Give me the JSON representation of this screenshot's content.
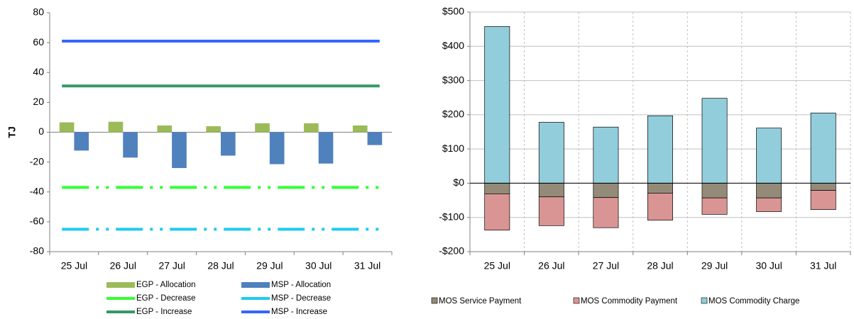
{
  "chart_data": [
    {
      "type": "bar",
      "y_label": "TJ",
      "categories": [
        "25 Jul",
        "26 Jul",
        "27 Jul",
        "28 Jul",
        "29 Jul",
        "30 Jul",
        "31 Jul"
      ],
      "ylim": [
        -80,
        80
      ],
      "yticks": [
        -80,
        -60,
        -40,
        -20,
        0,
        20,
        40,
        60,
        80
      ],
      "grid": false,
      "series": [
        {
          "name": "EGP - Allocation",
          "type": "bar",
          "color": "#9bbb59",
          "values": [
            6.6,
            7,
            4.5,
            4,
            6,
            6,
            4.5
          ]
        },
        {
          "name": "MSP - Allocation",
          "type": "bar",
          "color": "#4f81bd",
          "values": [
            -12.3,
            -17,
            -24,
            -15.7,
            -21.4,
            -21,
            -8.6
          ]
        },
        {
          "name": "EGP - Decrease",
          "type": "line",
          "dash": "dashdot",
          "color": "#33ff33",
          "values": [
            -37,
            -37,
            -37,
            -37,
            -37,
            -37,
            -37
          ]
        },
        {
          "name": "MSP - Decrease",
          "type": "line",
          "dash": "dashdot",
          "color": "#1ecbf0",
          "values": [
            -65,
            -65,
            -65,
            -65,
            -65,
            -65,
            -65
          ]
        },
        {
          "name": "EGP - Increase",
          "type": "line",
          "color": "#339966",
          "values": [
            31,
            31,
            31,
            31,
            31,
            31,
            31
          ]
        },
        {
          "name": "MSP - Increase",
          "type": "line",
          "color": "#3366ff",
          "values": [
            61,
            61,
            61,
            61,
            61,
            61,
            61
          ]
        }
      ]
    },
    {
      "type": "bar",
      "stacked": true,
      "categories": [
        "25 Jul",
        "26 Jul",
        "27 Jul",
        "28 Jul",
        "29 Jul",
        "30 Jul",
        "31 Jul"
      ],
      "ylim": [
        -200,
        500
      ],
      "yticks": [
        {
          "value": -200,
          "label": "-$200"
        },
        {
          "value": -100,
          "label": "-$100"
        },
        {
          "value": 0,
          "label": "$0"
        },
        {
          "value": 100,
          "label": "$100"
        },
        {
          "value": 200,
          "label": "$200"
        },
        {
          "value": 300,
          "label": "$300"
        },
        {
          "value": 400,
          "label": "$400"
        },
        {
          "value": 500,
          "label": "$500"
        }
      ],
      "grid": true,
      "series": [
        {
          "name": "MOS Service Payment",
          "color": "#948a78",
          "values": [
            -31,
            -40,
            -42,
            -29,
            -43,
            -43,
            -21
          ]
        },
        {
          "name": "MOS Commodity Payment",
          "color": "#d99594",
          "values": [
            -106,
            -84,
            -88,
            -79,
            -48,
            -40,
            -56
          ]
        },
        {
          "name": "MOS Commodity Charge",
          "color": "#92cddc",
          "values": [
            458,
            178,
            164,
            197,
            248,
            161,
            205
          ]
        }
      ]
    }
  ]
}
